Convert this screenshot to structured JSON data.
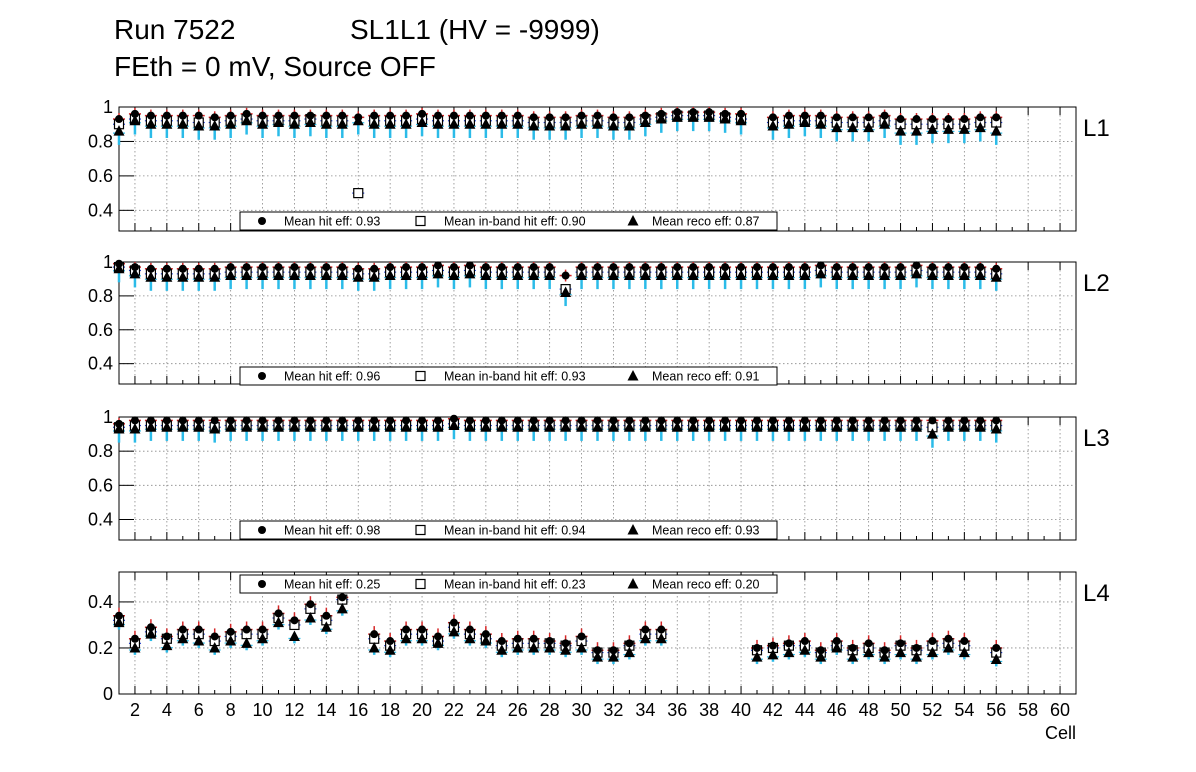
{
  "title": {
    "run": "Run 7522",
    "chamber": "SL1L1 (HV = -9999)",
    "subtitle": "FEth = 0 mV, Source OFF"
  },
  "colors": {
    "hit": "#d62728",
    "inband": "#1f3fd4",
    "reco": "#2bbbe8",
    "marker": "#000000",
    "grid": "#888888"
  },
  "chart_data": {
    "type": "scatter",
    "xlabel": "Cell",
    "xlim": [
      1,
      61
    ],
    "x_ticks": [
      2,
      4,
      6,
      8,
      10,
      12,
      14,
      16,
      18,
      20,
      22,
      24,
      26,
      28,
      30,
      32,
      34,
      36,
      38,
      40,
      42,
      44,
      46,
      48,
      50,
      52,
      54,
      56,
      58,
      60
    ],
    "cells": [
      1,
      2,
      3,
      4,
      5,
      6,
      7,
      8,
      9,
      10,
      11,
      12,
      13,
      14,
      15,
      16,
      17,
      18,
      19,
      20,
      21,
      22,
      23,
      24,
      25,
      26,
      27,
      28,
      29,
      30,
      31,
      32,
      33,
      34,
      35,
      36,
      37,
      38,
      39,
      40,
      41,
      42,
      43,
      44,
      45,
      46,
      47,
      48,
      49,
      50,
      51,
      52,
      53,
      54,
      55,
      56
    ],
    "layers": [
      {
        "name": "L1",
        "ylim": [
          0.28,
          1.0
        ],
        "y_ticks": [
          "0.4",
          "0.6",
          "0.8",
          "1"
        ],
        "legend": {
          "hit": "Mean hit  eff: 0.93",
          "inband": "Mean in-band hit eff: 0.90",
          "reco": "Mean reco eff: 0.87"
        },
        "hit": [
          0.93,
          0.96,
          0.95,
          0.95,
          0.95,
          0.95,
          0.94,
          0.95,
          0.96,
          0.95,
          0.95,
          0.95,
          0.95,
          0.95,
          0.95,
          0.94,
          0.95,
          0.95,
          0.95,
          0.96,
          0.95,
          0.95,
          0.95,
          0.95,
          0.95,
          0.95,
          0.94,
          0.94,
          0.94,
          0.95,
          0.95,
          0.94,
          0.94,
          0.95,
          0.96,
          0.97,
          0.97,
          0.97,
          0.96,
          0.96,
          null,
          0.94,
          0.95,
          0.95,
          0.95,
          0.94,
          0.94,
          0.94,
          0.95,
          0.93,
          0.93,
          0.93,
          0.93,
          0.93,
          0.94,
          0.94
        ],
        "inband": [
          0.9,
          0.93,
          0.92,
          0.92,
          0.92,
          0.91,
          0.91,
          0.92,
          0.93,
          0.92,
          0.92,
          0.92,
          0.93,
          0.92,
          0.92,
          0.5,
          0.92,
          0.92,
          0.92,
          0.93,
          0.92,
          0.92,
          0.92,
          0.92,
          0.92,
          0.92,
          0.91,
          0.91,
          0.91,
          0.92,
          0.92,
          0.91,
          0.91,
          0.93,
          0.94,
          0.95,
          0.95,
          0.95,
          0.94,
          0.93,
          null,
          0.91,
          0.92,
          0.92,
          0.92,
          0.91,
          0.91,
          0.91,
          0.92,
          0.9,
          0.9,
          0.9,
          0.9,
          0.9,
          0.91,
          0.91
        ],
        "reco": [
          0.86,
          0.92,
          0.9,
          0.9,
          0.9,
          0.89,
          0.89,
          0.9,
          0.92,
          0.9,
          0.91,
          0.9,
          0.91,
          0.9,
          0.9,
          0.92,
          0.9,
          0.9,
          0.9,
          0.91,
          0.9,
          0.9,
          0.9,
          0.9,
          0.9,
          0.9,
          0.89,
          0.89,
          0.89,
          0.9,
          0.9,
          0.89,
          0.89,
          0.91,
          0.93,
          0.94,
          0.94,
          0.94,
          0.93,
          0.92,
          null,
          0.89,
          0.9,
          0.91,
          0.9,
          0.88,
          0.88,
          0.88,
          0.9,
          0.86,
          0.86,
          0.87,
          0.87,
          0.87,
          0.88,
          0.86
        ]
      },
      {
        "name": "L2",
        "ylim": [
          0.28,
          1.0
        ],
        "y_ticks": [
          "0.4",
          "0.6",
          "0.8",
          "1"
        ],
        "legend": {
          "hit": "Mean hit  eff: 0.96",
          "inband": "Mean in-band hit eff: 0.93",
          "reco": "Mean reco eff: 0.91"
        },
        "hit": [
          0.99,
          0.97,
          0.96,
          0.96,
          0.96,
          0.96,
          0.96,
          0.97,
          0.97,
          0.97,
          0.97,
          0.97,
          0.97,
          0.97,
          0.97,
          0.96,
          0.96,
          0.97,
          0.97,
          0.97,
          0.98,
          0.97,
          0.98,
          0.97,
          0.97,
          0.97,
          0.97,
          0.97,
          0.92,
          0.97,
          0.97,
          0.97,
          0.97,
          0.97,
          0.97,
          0.97,
          0.97,
          0.97,
          0.97,
          0.97,
          0.97,
          0.97,
          0.97,
          0.97,
          0.98,
          0.97,
          0.97,
          0.97,
          0.97,
          0.97,
          0.98,
          0.97,
          0.97,
          0.97,
          0.97,
          0.96
        ],
        "inband": [
          0.97,
          0.95,
          0.93,
          0.93,
          0.93,
          0.93,
          0.93,
          0.94,
          0.94,
          0.94,
          0.94,
          0.94,
          0.94,
          0.94,
          0.94,
          0.93,
          0.93,
          0.94,
          0.94,
          0.94,
          0.95,
          0.94,
          0.95,
          0.94,
          0.94,
          0.94,
          0.94,
          0.94,
          0.84,
          0.94,
          0.94,
          0.94,
          0.94,
          0.94,
          0.94,
          0.94,
          0.94,
          0.94,
          0.94,
          0.94,
          0.94,
          0.94,
          0.94,
          0.94,
          0.95,
          0.94,
          0.94,
          0.94,
          0.94,
          0.94,
          0.95,
          0.94,
          0.94,
          0.94,
          0.94,
          0.93
        ],
        "reco": [
          0.96,
          0.93,
          0.91,
          0.91,
          0.91,
          0.91,
          0.91,
          0.92,
          0.92,
          0.92,
          0.92,
          0.92,
          0.92,
          0.92,
          0.92,
          0.91,
          0.91,
          0.92,
          0.92,
          0.92,
          0.93,
          0.92,
          0.93,
          0.92,
          0.92,
          0.92,
          0.92,
          0.92,
          0.82,
          0.92,
          0.92,
          0.92,
          0.92,
          0.92,
          0.92,
          0.92,
          0.92,
          0.92,
          0.92,
          0.92,
          0.92,
          0.92,
          0.92,
          0.92,
          0.93,
          0.92,
          0.92,
          0.92,
          0.92,
          0.92,
          0.93,
          0.92,
          0.92,
          0.92,
          0.92,
          0.91
        ]
      },
      {
        "name": "L3",
        "ylim": [
          0.28,
          1.0
        ],
        "y_ticks": [
          "0.4",
          "0.6",
          "0.8",
          "1"
        ],
        "legend": {
          "hit": "Mean hit  eff: 0.98",
          "inband": "Mean in-band hit eff: 0.94",
          "reco": "Mean reco eff: 0.93"
        },
        "hit": [
          0.96,
          0.98,
          0.98,
          0.98,
          0.98,
          0.98,
          0.98,
          0.98,
          0.98,
          0.98,
          0.98,
          0.98,
          0.98,
          0.98,
          0.98,
          0.98,
          0.98,
          0.98,
          0.98,
          0.98,
          0.98,
          0.99,
          0.98,
          0.98,
          0.98,
          0.98,
          0.98,
          0.98,
          0.98,
          0.98,
          0.98,
          0.98,
          0.98,
          0.98,
          0.98,
          0.98,
          0.98,
          0.98,
          0.98,
          0.98,
          0.98,
          0.98,
          0.98,
          0.98,
          0.98,
          0.98,
          0.98,
          0.98,
          0.98,
          0.98,
          0.98,
          0.98,
          0.98,
          0.98,
          0.98,
          0.98
        ],
        "inband": [
          0.94,
          0.95,
          0.95,
          0.95,
          0.95,
          0.95,
          0.94,
          0.95,
          0.95,
          0.95,
          0.95,
          0.95,
          0.95,
          0.95,
          0.95,
          0.95,
          0.95,
          0.95,
          0.95,
          0.95,
          0.95,
          0.96,
          0.95,
          0.95,
          0.95,
          0.95,
          0.95,
          0.95,
          0.95,
          0.95,
          0.95,
          0.95,
          0.95,
          0.95,
          0.95,
          0.95,
          0.95,
          0.95,
          0.95,
          0.95,
          0.95,
          0.95,
          0.95,
          0.95,
          0.95,
          0.95,
          0.95,
          0.95,
          0.95,
          0.95,
          0.95,
          0.94,
          0.95,
          0.95,
          0.95,
          0.95
        ],
        "reco": [
          0.93,
          0.93,
          0.94,
          0.94,
          0.94,
          0.94,
          0.93,
          0.94,
          0.94,
          0.94,
          0.94,
          0.94,
          0.94,
          0.94,
          0.94,
          0.94,
          0.94,
          0.94,
          0.94,
          0.94,
          0.94,
          0.95,
          0.94,
          0.94,
          0.94,
          0.94,
          0.94,
          0.94,
          0.94,
          0.94,
          0.94,
          0.94,
          0.94,
          0.94,
          0.94,
          0.94,
          0.94,
          0.94,
          0.94,
          0.94,
          0.94,
          0.94,
          0.94,
          0.94,
          0.94,
          0.94,
          0.94,
          0.94,
          0.94,
          0.94,
          0.94,
          0.9,
          0.94,
          0.94,
          0.94,
          0.93
        ]
      },
      {
        "name": "L4",
        "ylim": [
          0.0,
          0.53
        ],
        "y_ticks": [
          "0",
          "0.2",
          "0.4"
        ],
        "legend": {
          "hit": "Mean hit  eff: 0.25",
          "inband": "Mean in-band hit eff: 0.23",
          "reco": "Mean reco eff: 0.20"
        },
        "hit": [
          0.34,
          0.24,
          0.29,
          0.25,
          0.28,
          0.28,
          0.25,
          0.27,
          0.28,
          0.28,
          0.35,
          0.32,
          0.39,
          0.34,
          0.42,
          null,
          0.26,
          0.23,
          0.28,
          0.28,
          0.25,
          0.31,
          0.28,
          0.26,
          0.23,
          0.24,
          0.24,
          0.23,
          0.22,
          0.25,
          0.19,
          0.19,
          0.22,
          0.28,
          0.28,
          null,
          null,
          null,
          null,
          null,
          0.2,
          0.21,
          0.22,
          0.23,
          0.19,
          0.23,
          0.2,
          0.22,
          0.19,
          0.22,
          0.2,
          0.23,
          0.24,
          0.23,
          null,
          0.2
        ],
        "inband": [
          0.32,
          0.22,
          0.27,
          0.24,
          0.26,
          0.26,
          0.23,
          0.25,
          0.26,
          0.26,
          0.33,
          0.3,
          0.37,
          0.32,
          0.41,
          null,
          0.24,
          0.21,
          0.26,
          0.26,
          0.23,
          0.29,
          0.26,
          0.24,
          0.21,
          0.22,
          0.22,
          0.22,
          0.21,
          0.23,
          0.18,
          0.18,
          0.21,
          0.26,
          0.26,
          null,
          null,
          null,
          null,
          null,
          0.19,
          0.2,
          0.21,
          0.21,
          0.18,
          0.21,
          0.19,
          0.2,
          0.18,
          0.21,
          0.19,
          0.21,
          0.22,
          0.21,
          null,
          0.18
        ],
        "reco": [
          0.31,
          0.2,
          0.26,
          0.21,
          0.24,
          0.23,
          0.2,
          0.23,
          0.22,
          0.24,
          0.31,
          0.25,
          0.33,
          0.29,
          0.37,
          null,
          0.2,
          0.19,
          0.24,
          0.24,
          0.22,
          0.27,
          0.24,
          0.23,
          0.19,
          0.2,
          0.2,
          0.2,
          0.19,
          0.2,
          0.16,
          0.16,
          0.18,
          0.24,
          0.24,
          null,
          null,
          null,
          null,
          null,
          0.16,
          0.17,
          0.18,
          0.19,
          0.16,
          0.2,
          0.16,
          0.18,
          0.16,
          0.18,
          0.16,
          0.18,
          0.2,
          0.18,
          null,
          0.15
        ]
      }
    ]
  }
}
